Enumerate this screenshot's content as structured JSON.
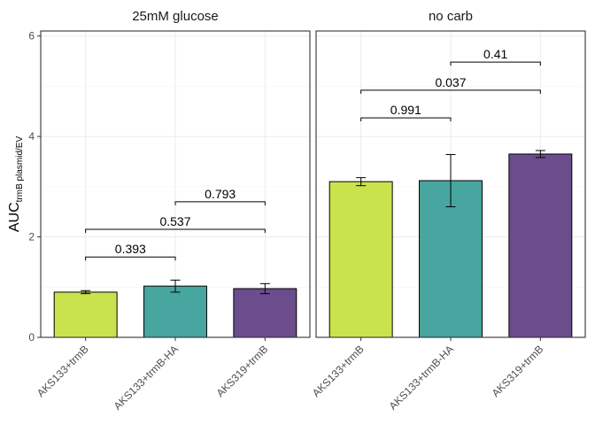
{
  "chart_data": {
    "type": "bar",
    "ylabel": {
      "main": "AUC",
      "subscript": "trmB plasmid/EV"
    },
    "ylim": [
      0,
      6.1
    ],
    "yticks": [
      0,
      2,
      4,
      6
    ],
    "categories": [
      "AKS133+trmB",
      "AKS133+trmB-HA",
      "AKS319+trmB"
    ],
    "colors": [
      "#c9e34d",
      "#48a6a0",
      "#6b4c8c"
    ],
    "grid": true,
    "legend": "none",
    "panels": [
      {
        "title": "25mM glucose",
        "values": [
          0.9,
          1.02,
          0.97
        ],
        "errors": [
          0.03,
          0.12,
          0.1
        ],
        "comparisons": [
          {
            "from": 0,
            "to": 1,
            "y": 1.6,
            "label": "0.393"
          },
          {
            "from": 0,
            "to": 2,
            "y": 2.15,
            "label": "0.537"
          },
          {
            "from": 1,
            "to": 2,
            "y": 2.7,
            "label": "0.793"
          }
        ]
      },
      {
        "title": "no carb",
        "values": [
          3.1,
          3.12,
          3.65
        ],
        "errors": [
          0.08,
          0.52,
          0.07
        ],
        "comparisons": [
          {
            "from": 0,
            "to": 1,
            "y": 4.37,
            "label": "0.991"
          },
          {
            "from": 0,
            "to": 2,
            "y": 4.92,
            "label": "0.037"
          },
          {
            "from": 1,
            "to": 2,
            "y": 5.48,
            "label": "0.41"
          }
        ]
      }
    ]
  }
}
